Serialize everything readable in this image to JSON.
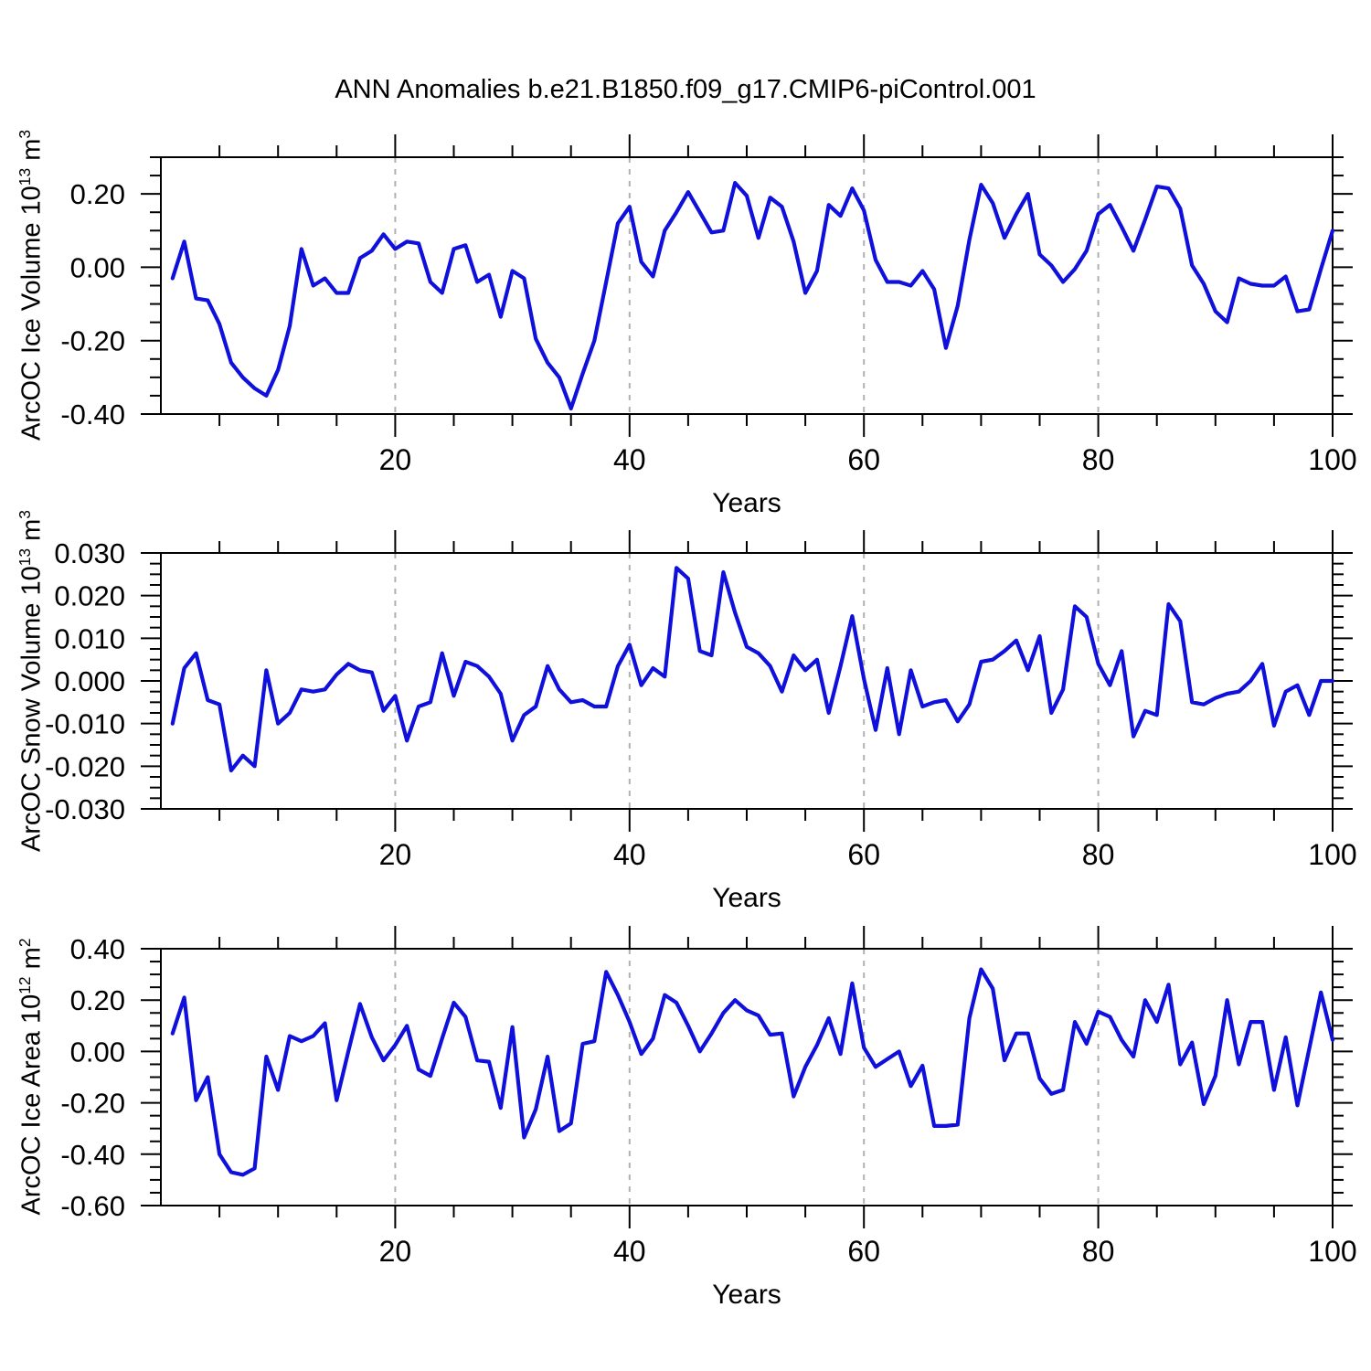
{
  "title": "ANN Anomalies b.e21.B1850.f09_g17.CMIP6-piControl.001",
  "style": {
    "line_color": "#1010dc",
    "grid_color": "#b0b0b0",
    "axis_color": "#000000"
  },
  "chart_data": [
    {
      "type": "line",
      "ylabel": {
        "prefix": "ArcOC Ice Volume 10",
        "exp": "13",
        "unit": " m",
        "unit_exp": "3"
      },
      "xlabel": "Years",
      "xlim": [
        0,
        100
      ],
      "ylim": [
        -0.4,
        0.3
      ],
      "x_ticks": {
        "major": [
          20,
          40,
          60,
          80,
          100
        ],
        "labels": [
          "20",
          "40",
          "60",
          "80",
          "100"
        ],
        "minor_step": 5
      },
      "y_ticks": {
        "values": [
          0.2,
          0.0,
          -0.2,
          -0.4
        ],
        "labels": [
          "0.20",
          "0.00",
          "-0.20",
          "-0.40"
        ],
        "minor_step": 0.05
      },
      "gridlines_x": [
        20,
        40,
        60,
        80
      ],
      "grid": true,
      "legend": "none",
      "x": [
        1,
        2,
        3,
        4,
        5,
        6,
        7,
        8,
        9,
        10,
        11,
        12,
        13,
        14,
        15,
        16,
        17,
        18,
        19,
        20,
        21,
        22,
        23,
        24,
        25,
        26,
        27,
        28,
        29,
        30,
        31,
        32,
        33,
        34,
        35,
        36,
        37,
        38,
        39,
        40,
        41,
        42,
        43,
        44,
        45,
        46,
        47,
        48,
        49,
        50,
        51,
        52,
        53,
        54,
        55,
        56,
        57,
        58,
        59,
        60,
        61,
        62,
        63,
        64,
        65,
        66,
        67,
        68,
        69,
        70,
        71,
        72,
        73,
        74,
        75,
        76,
        77,
        78,
        79,
        80,
        81,
        82,
        83,
        84,
        85,
        86,
        87,
        88,
        89,
        90,
        91,
        92,
        93,
        94,
        95,
        96,
        97,
        98,
        99,
        100
      ],
      "values": [
        -0.03,
        0.07,
        -0.085,
        -0.09,
        -0.155,
        -0.26,
        -0.3,
        -0.33,
        -0.35,
        -0.28,
        -0.16,
        0.05,
        -0.05,
        -0.03,
        -0.07,
        -0.07,
        0.025,
        0.045,
        0.09,
        0.05,
        0.07,
        0.065,
        -0.04,
        -0.07,
        0.05,
        0.06,
        -0.04,
        -0.02,
        -0.135,
        -0.01,
        -0.03,
        -0.195,
        -0.26,
        -0.3,
        -0.385,
        -0.29,
        -0.2,
        -0.04,
        0.12,
        0.165,
        0.015,
        -0.025,
        0.1,
        0.15,
        0.205,
        0.15,
        0.095,
        0.1,
        0.23,
        0.195,
        0.08,
        0.19,
        0.165,
        0.07,
        -0.07,
        -0.01,
        0.17,
        0.14,
        0.215,
        0.155,
        0.02,
        -0.04,
        -0.04,
        -0.05,
        -0.01,
        -0.06,
        -0.22,
        -0.105,
        0.075,
        0.225,
        0.175,
        0.08,
        0.145,
        0.2,
        0.035,
        0.005,
        -0.04,
        -0.005,
        0.045,
        0.145,
        0.17,
        0.11,
        0.045,
        0.13,
        0.22,
        0.215,
        0.16,
        0.005,
        -0.045,
        -0.12,
        -0.15,
        -0.03,
        -0.045,
        -0.05,
        -0.05,
        -0.025,
        -0.12,
        -0.115,
        -0.005,
        0.1
      ]
    },
    {
      "type": "line",
      "ylabel": {
        "prefix": "ArcOC Snow Volume 10",
        "exp": "13",
        "unit": " m",
        "unit_exp": "3"
      },
      "xlabel": "Years",
      "xlim": [
        0,
        100
      ],
      "ylim": [
        -0.03,
        0.03
      ],
      "x_ticks": {
        "major": [
          20,
          40,
          60,
          80,
          100
        ],
        "labels": [
          "20",
          "40",
          "60",
          "80",
          "100"
        ],
        "minor_step": 5
      },
      "y_ticks": {
        "values": [
          0.03,
          0.02,
          0.01,
          0.0,
          -0.01,
          -0.02,
          -0.03
        ],
        "labels": [
          "0.030",
          "0.020",
          "0.010",
          "0.000",
          "-0.010",
          "-0.020",
          "-0.030"
        ],
        "minor_step": 0.0025
      },
      "gridlines_x": [
        20,
        40,
        60,
        80
      ],
      "grid": true,
      "legend": "none",
      "x": [
        1,
        2,
        3,
        4,
        5,
        6,
        7,
        8,
        9,
        10,
        11,
        12,
        13,
        14,
        15,
        16,
        17,
        18,
        19,
        20,
        21,
        22,
        23,
        24,
        25,
        26,
        27,
        28,
        29,
        30,
        31,
        32,
        33,
        34,
        35,
        36,
        37,
        38,
        39,
        40,
        41,
        42,
        43,
        44,
        45,
        46,
        47,
        48,
        49,
        50,
        51,
        52,
        53,
        54,
        55,
        56,
        57,
        58,
        59,
        60,
        61,
        62,
        63,
        64,
        65,
        66,
        67,
        68,
        69,
        70,
        71,
        72,
        73,
        74,
        75,
        76,
        77,
        78,
        79,
        80,
        81,
        82,
        83,
        84,
        85,
        86,
        87,
        88,
        89,
        90,
        91,
        92,
        93,
        94,
        95,
        96,
        97,
        98,
        99,
        100
      ],
      "values": [
        -0.01,
        0.003,
        0.0065,
        -0.0045,
        -0.0055,
        -0.021,
        -0.0175,
        -0.02,
        0.0025,
        -0.01,
        -0.0075,
        -0.002,
        -0.0025,
        -0.002,
        0.0015,
        0.004,
        0.0025,
        0.002,
        -0.007,
        -0.0035,
        -0.014,
        -0.006,
        -0.005,
        0.0065,
        -0.0035,
        0.0045,
        0.0035,
        0.001,
        -0.003,
        -0.014,
        -0.008,
        -0.006,
        0.0035,
        -0.002,
        -0.005,
        -0.0045,
        -0.006,
        -0.006,
        0.0035,
        0.0085,
        -0.001,
        0.003,
        0.001,
        0.0265,
        0.024,
        0.007,
        0.006,
        0.0255,
        0.016,
        0.008,
        0.0065,
        0.0035,
        -0.0025,
        0.006,
        0.0025,
        0.005,
        -0.0075,
        0.0035,
        0.0152,
        0.0005,
        -0.0115,
        0.003,
        -0.0125,
        0.0025,
        -0.006,
        -0.005,
        -0.0045,
        -0.0095,
        -0.0055,
        0.0045,
        0.005,
        0.007,
        0.0095,
        0.0025,
        0.0105,
        -0.0075,
        -0.002,
        0.0175,
        0.015,
        0.004,
        -0.001,
        0.007,
        -0.013,
        -0.007,
        -0.008,
        0.018,
        0.014,
        -0.005,
        -0.0055,
        -0.004,
        -0.003,
        -0.0025,
        0.0,
        0.004,
        -0.0105,
        -0.0025,
        -0.001,
        -0.008,
        0.0,
        0.0
      ]
    },
    {
      "type": "line",
      "ylabel": {
        "prefix": "ArcOC Ice Area 10",
        "exp": "12",
        "unit": " m",
        "unit_exp": "2"
      },
      "xlabel": "Years",
      "xlim": [
        0,
        100
      ],
      "ylim": [
        -0.6,
        0.4
      ],
      "x_ticks": {
        "major": [
          20,
          40,
          60,
          80,
          100
        ],
        "labels": [
          "20",
          "40",
          "60",
          "80",
          "100"
        ],
        "minor_step": 5
      },
      "y_ticks": {
        "values": [
          0.4,
          0.2,
          0.0,
          -0.2,
          -0.4,
          -0.6
        ],
        "labels": [
          "0.40",
          "0.20",
          "0.00",
          "-0.20",
          "-0.40",
          "-0.60"
        ],
        "minor_step": 0.05
      },
      "gridlines_x": [
        20,
        40,
        60,
        80
      ],
      "grid": true,
      "legend": "none",
      "x": [
        1,
        2,
        3,
        4,
        5,
        6,
        7,
        8,
        9,
        10,
        11,
        12,
        13,
        14,
        15,
        16,
        17,
        18,
        19,
        20,
        21,
        22,
        23,
        24,
        25,
        26,
        27,
        28,
        29,
        30,
        31,
        32,
        33,
        34,
        35,
        36,
        37,
        38,
        39,
        40,
        41,
        42,
        43,
        44,
        45,
        46,
        47,
        48,
        49,
        50,
        51,
        52,
        53,
        54,
        55,
        56,
        57,
        58,
        59,
        60,
        61,
        62,
        63,
        64,
        65,
        66,
        67,
        68,
        69,
        70,
        71,
        72,
        73,
        74,
        75,
        76,
        77,
        78,
        79,
        80,
        81,
        82,
        83,
        84,
        85,
        86,
        87,
        88,
        89,
        90,
        91,
        92,
        93,
        94,
        95,
        96,
        97,
        98,
        99,
        100
      ],
      "values": [
        0.07,
        0.21,
        -0.19,
        -0.1,
        -0.4,
        -0.47,
        -0.48,
        -0.455,
        -0.02,
        -0.15,
        0.06,
        0.04,
        0.06,
        0.11,
        -0.19,
        0.0,
        0.185,
        0.055,
        -0.035,
        0.025,
        0.1,
        -0.07,
        -0.095,
        0.05,
        0.19,
        0.135,
        -0.035,
        -0.04,
        -0.22,
        0.095,
        -0.335,
        -0.225,
        -0.02,
        -0.31,
        -0.28,
        0.03,
        0.04,
        0.31,
        0.22,
        0.115,
        -0.01,
        0.05,
        0.22,
        0.19,
        0.1,
        0.0,
        0.07,
        0.15,
        0.2,
        0.16,
        0.14,
        0.065,
        0.07,
        -0.175,
        -0.06,
        0.025,
        0.13,
        -0.01,
        0.265,
        0.015,
        -0.06,
        -0.03,
        0.0,
        -0.135,
        -0.055,
        -0.29,
        -0.29,
        -0.285,
        0.13,
        0.32,
        0.245,
        -0.035,
        0.07,
        0.07,
        -0.105,
        -0.165,
        -0.15,
        0.115,
        0.03,
        0.155,
        0.135,
        0.045,
        -0.02,
        0.2,
        0.115,
        0.26,
        -0.05,
        0.035,
        -0.205,
        -0.095,
        0.2,
        -0.05,
        0.115,
        0.115,
        -0.15,
        0.055,
        -0.21,
        0.01,
        0.23,
        0.045
      ]
    }
  ]
}
